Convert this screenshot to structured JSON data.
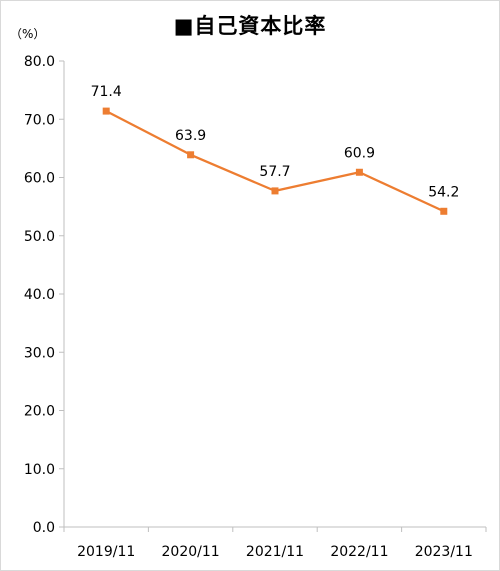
{
  "chart_data": {
    "type": "line",
    "title": "■自己資本比率",
    "unit": "（%）",
    "categories": [
      "2019/11",
      "2020/11",
      "2021/11",
      "2022/11",
      "2023/11"
    ],
    "series": [
      {
        "values": [
          71.4,
          63.9,
          57.7,
          60.9,
          54.2
        ]
      }
    ],
    "data_labels": [
      "71.4",
      "63.9",
      "57.7",
      "60.9",
      "54.2"
    ],
    "y_ticks": [
      "0.0",
      "10.0",
      "20.0",
      "30.0",
      "40.0",
      "50.0",
      "60.0",
      "70.0",
      "80.0"
    ],
    "ylim": [
      0,
      80
    ],
    "ytick_step": 10,
    "grid": false,
    "legend": "none",
    "line_color": "#ED7D31",
    "axis_color": "#bfbfbf"
  }
}
